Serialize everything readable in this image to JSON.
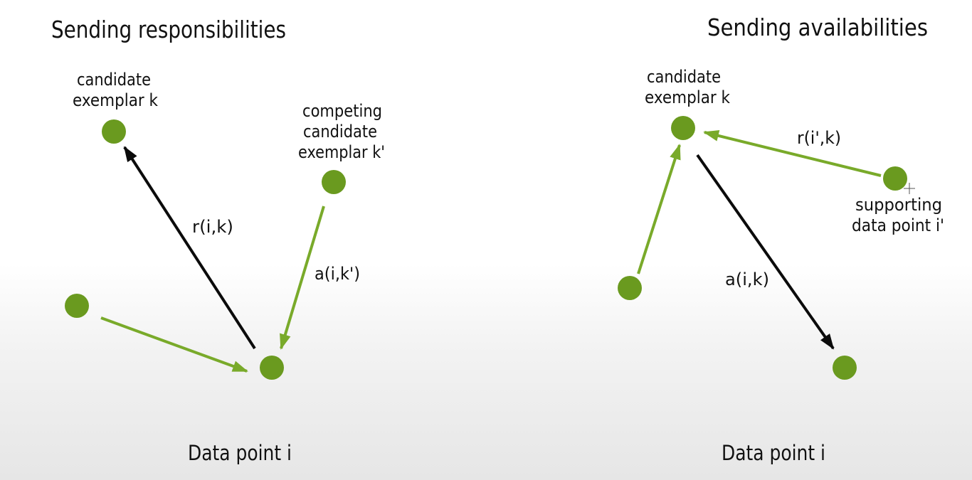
{
  "colors": {
    "node": "#6a9a1f",
    "green_arrow": "#79aa2a",
    "black_arrow": "#0b0b0b",
    "text": "#111111"
  },
  "left_panel": {
    "title": "Sending responsibilities",
    "candidate_label": [
      "candidate",
      "exemplar k"
    ],
    "competing_label": [
      "competing",
      "candidate",
      "exemplar k'"
    ],
    "responsibility_label": "r(i,k)",
    "availability_label": "a(i,k')",
    "data_point_label": "Data point i"
  },
  "right_panel": {
    "title": "Sending availabilities",
    "candidate_label": [
      "candidate",
      "exemplar k"
    ],
    "supporting_label": [
      "supporting",
      "data point i'"
    ],
    "responsibility_label": "r(i',k)",
    "availability_label": "a(i,k)",
    "data_point_label": "Data point i"
  }
}
